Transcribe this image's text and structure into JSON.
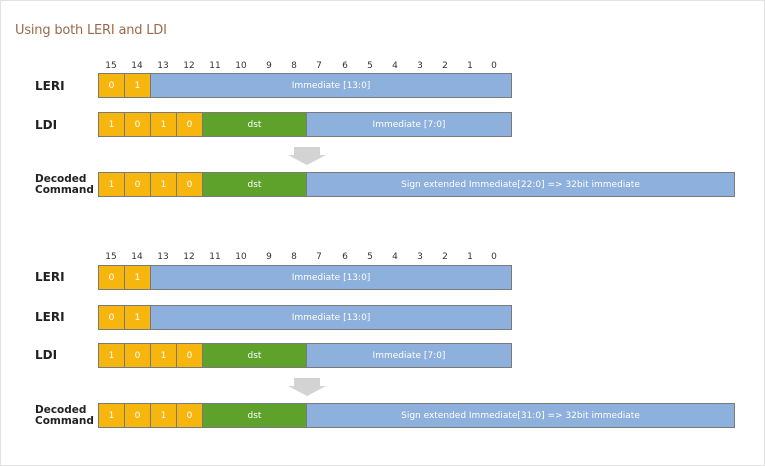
{
  "title": "Using both LERI and LDI",
  "bit_numbers": [
    "15",
    "14",
    "13",
    "12",
    "11",
    "10",
    "9",
    "8",
    "7",
    "6",
    "5",
    "4",
    "3",
    "2",
    "1",
    "0"
  ],
  "colors": {
    "opcode_bits": "#f7b60e",
    "dst": "#5ea22b",
    "immediate": "#8eb0dc",
    "arrow": "#d3d3d3",
    "title": "#9b6a4a"
  },
  "panels": [
    {
      "rows": [
        {
          "label": "LERI",
          "bits": [
            "0",
            "1"
          ],
          "immediate": "Immediate [13:0]"
        },
        {
          "label": "LDI",
          "bits": [
            "1",
            "0",
            "1",
            "0"
          ],
          "dst": "dst",
          "immediate": "Immediate [7:0]"
        }
      ],
      "decoded": {
        "label_line1": "Decoded",
        "label_line2": "Command",
        "bits": [
          "1",
          "0",
          "1",
          "0"
        ],
        "dst": "dst",
        "immediate": "Sign extended Immediate[22:0] => 32bit immediate"
      }
    },
    {
      "rows": [
        {
          "label": "LERI",
          "bits": [
            "0",
            "1"
          ],
          "immediate": "Immediate [13:0]"
        },
        {
          "label": "LERI",
          "bits": [
            "0",
            "1"
          ],
          "immediate": "Immediate [13:0]"
        },
        {
          "label": "LDI",
          "bits": [
            "1",
            "0",
            "1",
            "0"
          ],
          "dst": "dst",
          "immediate": "Immediate [7:0]"
        }
      ],
      "decoded": {
        "label_line1": "Decoded",
        "label_line2": "Command",
        "bits": [
          "1",
          "0",
          "1",
          "0"
        ],
        "dst": "dst",
        "immediate": "Sign extended Immediate[31:0] => 32bit immediate"
      }
    }
  ]
}
